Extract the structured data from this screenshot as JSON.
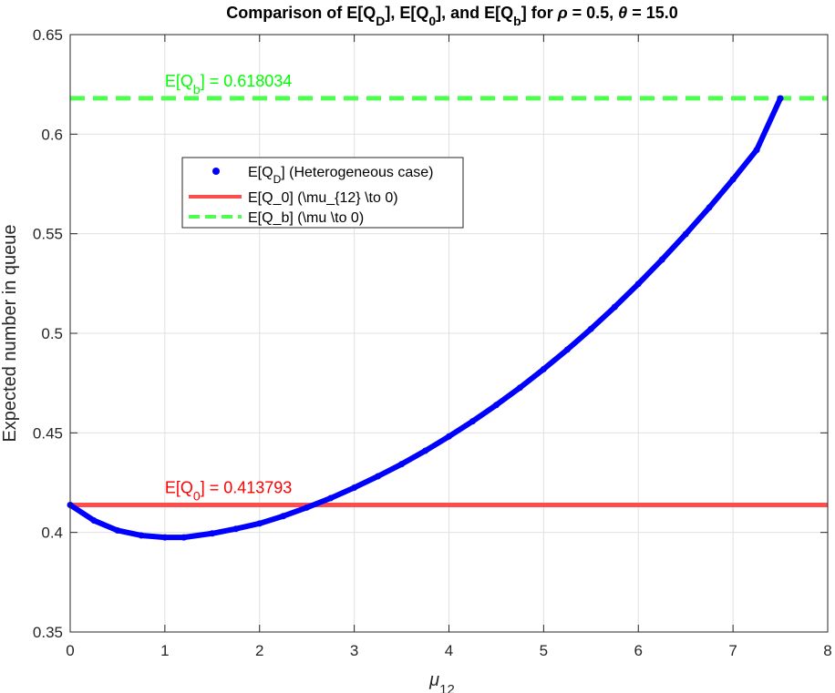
{
  "chart_data": {
    "type": "line",
    "title": {
      "main": "Comparison of E[Q",
      "sub1": "D",
      "mid1": "], E[Q",
      "sub2": "0",
      "mid2": "], and E[Q",
      "sub3": "b",
      "tail1": "] for ",
      "rho_symbol": "ρ",
      "tail2": " = 0.5, ",
      "theta_symbol": "θ",
      "tail3": " = 15.0"
    },
    "xlabel": {
      "symbol": "μ",
      "sub": "12"
    },
    "ylabel": "Expected number in queue",
    "xlim": [
      0,
      8
    ],
    "ylim": [
      0.35,
      0.65
    ],
    "xticks": [
      "0",
      "1",
      "2",
      "3",
      "4",
      "5",
      "6",
      "7",
      "8"
    ],
    "yticks": [
      "0.35",
      "0.4",
      "0.45",
      "0.5",
      "0.55",
      "0.6",
      "0.65"
    ],
    "grid": true,
    "series": [
      {
        "name": "E[Q_D] (Heterogeneous case)",
        "legend_text": {
          "pre": "E[Q",
          "sub": "D",
          "post": "] (Heterogeneous case)"
        },
        "color": "#0000ff",
        "style": "markers",
        "x": [
          0.0,
          0.25,
          0.5,
          0.75,
          1.0,
          1.2,
          1.5,
          1.75,
          2.0,
          2.25,
          2.5,
          2.75,
          3.0,
          3.25,
          3.5,
          3.75,
          4.0,
          4.25,
          4.5,
          4.75,
          5.0,
          5.25,
          5.5,
          5.75,
          6.0,
          6.25,
          6.5,
          6.75,
          7.0,
          7.25,
          7.5
        ],
        "y": [
          0.4138,
          0.406,
          0.401,
          0.3985,
          0.3975,
          0.3975,
          0.3995,
          0.4018,
          0.4045,
          0.4082,
          0.4125,
          0.4172,
          0.4225,
          0.4282,
          0.4343,
          0.441,
          0.4482,
          0.4558,
          0.464,
          0.4727,
          0.482,
          0.4918,
          0.5022,
          0.5132,
          0.5248,
          0.537,
          0.5498,
          0.5632,
          0.5773,
          0.5921,
          0.618
        ]
      },
      {
        "name": "E[Q_0] (\\mu_{12} \\to 0)",
        "color": "#ff4d4d",
        "style": "solid",
        "y_const": 0.413793
      },
      {
        "name": "E[Q_b] (\\mu \\to 0)",
        "color": "#4dff4d",
        "style": "dashed",
        "y_const": 0.618034
      }
    ],
    "annotations": [
      {
        "pre": "E[Q",
        "sub": "0",
        "post": "] = 0.413793",
        "x": 1.0,
        "y": 0.413793,
        "color": "#ff0000"
      },
      {
        "pre": "E[Q",
        "sub": "b",
        "post": "] = 0.618034",
        "x": 1.0,
        "y": 0.618034,
        "color": "#00ff00"
      }
    ],
    "legend_position": "upper-left inside"
  }
}
